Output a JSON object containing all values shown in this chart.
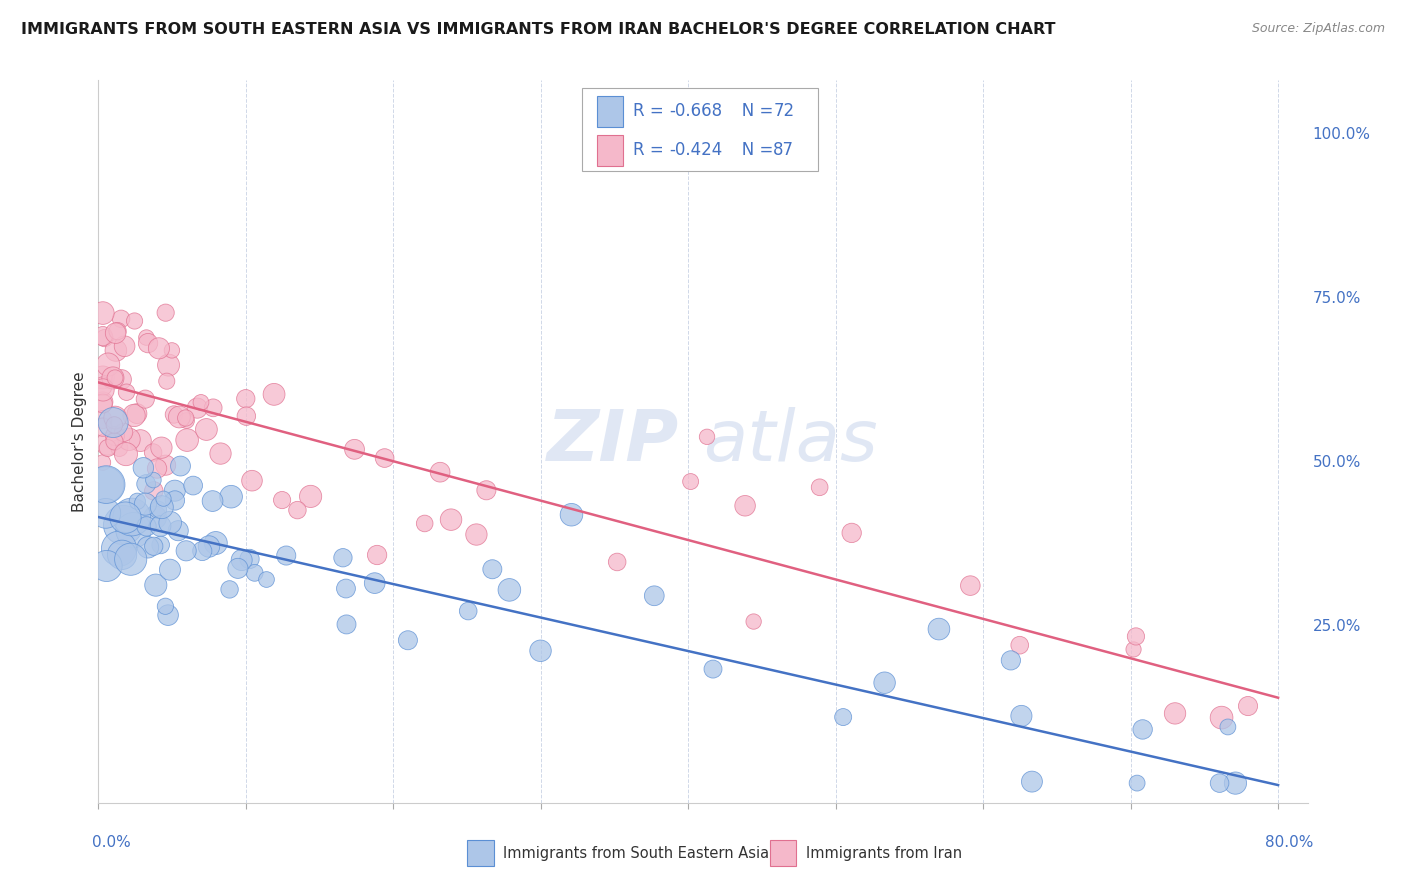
{
  "title": "IMMIGRANTS FROM SOUTH EASTERN ASIA VS IMMIGRANTS FROM IRAN BACHELOR'S DEGREE CORRELATION CHART",
  "source": "Source: ZipAtlas.com",
  "ylabel": "Bachelor's Degree",
  "right_yticks": [
    "100.0%",
    "75.0%",
    "50.0%",
    "25.0%"
  ],
  "right_ytick_vals": [
    1.0,
    0.75,
    0.5,
    0.25
  ],
  "xlim": [
    0.0,
    0.82
  ],
  "ylim": [
    -0.02,
    1.08
  ],
  "watermark_zip": "ZIP",
  "watermark_atlas": "atlas",
  "legend1_r": "-0.668",
  "legend1_n": "72",
  "legend2_r": "-0.424",
  "legend2_n": "87",
  "series1_fill": "#adc6e8",
  "series1_edge": "#5b8fd4",
  "series2_fill": "#f5b8ca",
  "series2_edge": "#e07090",
  "line1_color": "#4472c4",
  "line2_color": "#e06080",
  "text_color_blue": "#4472c4",
  "grid_color": "#d0d8e8",
  "legend_box_color": "#cccccc",
  "bottom_legend_label1": "Immigrants from South Eastern Asia",
  "bottom_legend_label2": "Immigrants from Iran",
  "blue_intercept": 0.415,
  "blue_slope": -0.51,
  "pink_intercept": 0.62,
  "pink_slope": -0.6
}
